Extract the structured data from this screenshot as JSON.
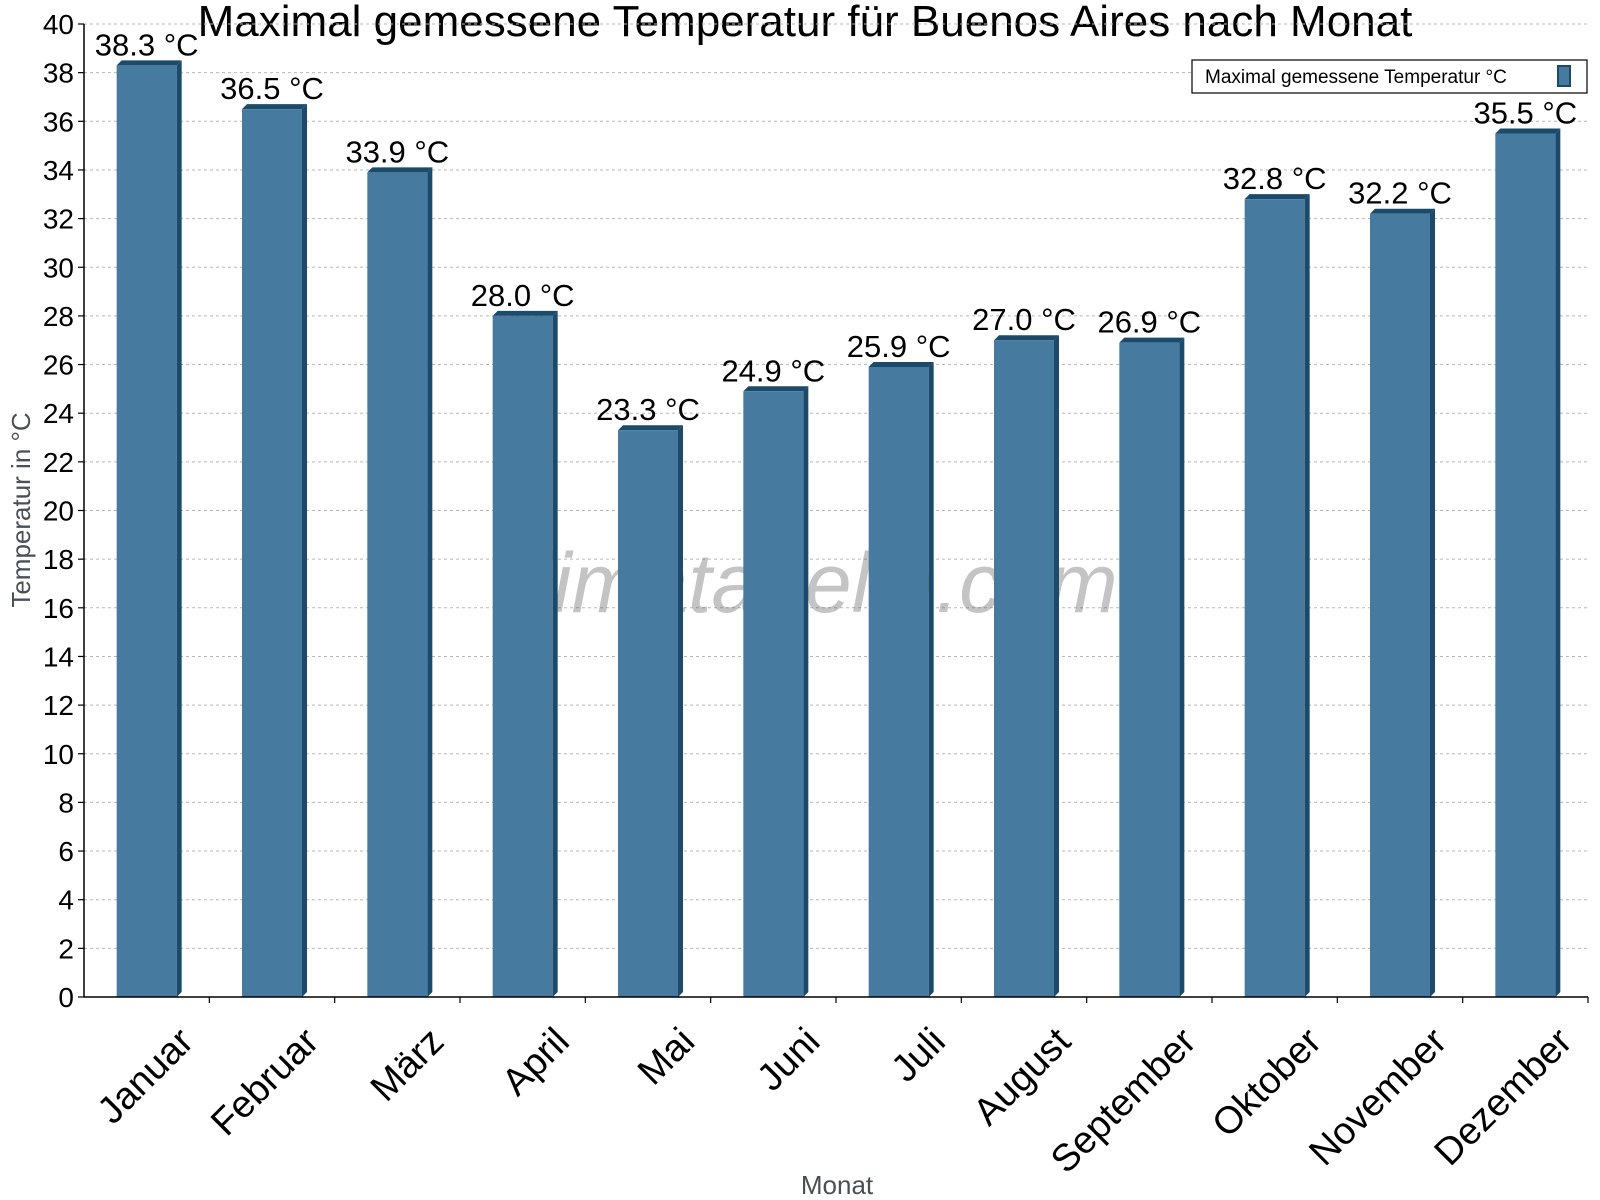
{
  "chart_data": {
    "type": "bar",
    "title": "Maximal gemessene Temperatur für Buenos Aires nach Monat",
    "xlabel": "Monat",
    "ylabel": "Temperatur in °C",
    "ylim": [
      0,
      40
    ],
    "ytick_step": 2,
    "grid": true,
    "legend_position": "top-right",
    "categories": [
      "Januar",
      "Februar",
      "März",
      "April",
      "Mai",
      "Juni",
      "Juli",
      "August",
      "September",
      "Oktober",
      "November",
      "Dezember"
    ],
    "series": [
      {
        "name": "Maximal gemessene Temperatur °C",
        "values": [
          38.3,
          36.5,
          33.9,
          28.0,
          23.3,
          24.9,
          25.9,
          27.0,
          26.9,
          32.8,
          32.2,
          35.5
        ],
        "labels": [
          "38.3 °C",
          "36.5 °C",
          "33.9 °C",
          "28.0 °C",
          "23.3 °C",
          "24.9 °C",
          "25.9 °C",
          "27.0 °C",
          "26.9 °C",
          "32.8 °C",
          "32.2 °C",
          "35.5 °C"
        ],
        "color": "#467a9e",
        "edge_color": "#1b4a6b"
      }
    ],
    "watermark": "klimatabelle.com"
  }
}
